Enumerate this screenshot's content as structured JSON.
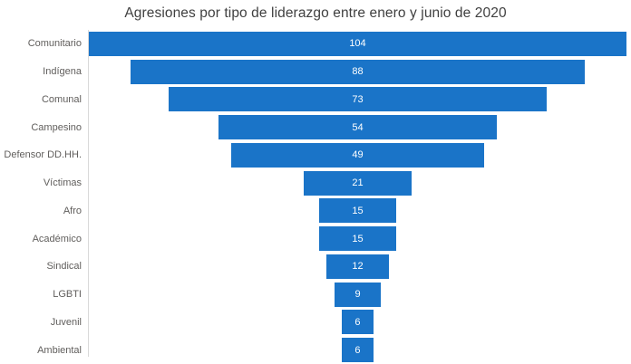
{
  "title": "Agresiones por tipo de liderazgo entre enero y junio de 2020",
  "colors": {
    "bar": "#1a74c8",
    "title_text": "#404040",
    "category_text": "#605e5c",
    "value_text": "#ffffff",
    "axis_line": "#d9d9d9",
    "background": "#ffffff"
  },
  "chart_data": {
    "type": "bar",
    "variant": "funnel",
    "orientation": "horizontal-centered",
    "title": "Agresiones por tipo de liderazgo entre enero y junio de 2020",
    "categories": [
      "Comunitario",
      "Indígena",
      "Comunal",
      "Campesino",
      "Defensor DD.HH.",
      "Víctimas",
      "Afro",
      "Académico",
      "Sindical",
      "LGBTI",
      "Juvenil",
      "Ambiental"
    ],
    "values": [
      104,
      88,
      73,
      54,
      49,
      21,
      15,
      15,
      12,
      9,
      6,
      6
    ],
    "max_value": 104,
    "xlabel": "",
    "ylabel": "",
    "grid": false,
    "legend": "none",
    "data_labels": "inside-center"
  }
}
